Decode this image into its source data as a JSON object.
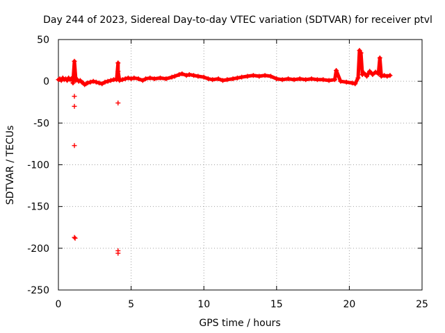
{
  "chart_data": {
    "type": "scatter",
    "title": "Day 244 of 2023, Sidereal Day-to-day VTEC variation (SDTVAR) for receiver ptvl",
    "xlabel": "GPS time / hours",
    "ylabel": "SDTVAR / TECUs",
    "xlim": [
      0,
      25
    ],
    "ylim": [
      -250,
      50
    ],
    "xticks": [
      0,
      5,
      10,
      15,
      20,
      25
    ],
    "yticks": [
      50,
      0,
      -50,
      -100,
      -150,
      -200,
      -250
    ],
    "grid": true,
    "marker": "+",
    "color": "#ff0000",
    "series": [
      {
        "name": "SDTVAR",
        "points": [
          [
            0.0,
            2
          ],
          [
            0.1,
            3
          ],
          [
            0.2,
            1
          ],
          [
            0.3,
            4
          ],
          [
            0.4,
            2
          ],
          [
            0.5,
            3
          ],
          [
            0.6,
            1
          ],
          [
            0.7,
            4
          ],
          [
            0.8,
            2
          ],
          [
            0.9,
            3
          ],
          [
            1.0,
            5
          ],
          [
            1.0,
            -2
          ],
          [
            1.1,
            24
          ],
          [
            1.1,
            -18
          ],
          [
            1.1,
            -30
          ],
          [
            1.1,
            -77
          ],
          [
            1.1,
            -187
          ],
          [
            1.15,
            -188
          ],
          [
            1.2,
            1
          ],
          [
            1.3,
            2
          ],
          [
            1.4,
            0
          ],
          [
            1.5,
            1
          ],
          [
            1.6,
            -1
          ],
          [
            1.7,
            -2
          ],
          [
            1.8,
            -4
          ],
          [
            1.9,
            -3
          ],
          [
            2.0,
            -2
          ],
          [
            2.2,
            -1
          ],
          [
            2.4,
            0
          ],
          [
            2.6,
            -1
          ],
          [
            2.8,
            -2
          ],
          [
            3.0,
            -3
          ],
          [
            3.2,
            -1
          ],
          [
            3.4,
            0
          ],
          [
            3.6,
            1
          ],
          [
            3.8,
            2
          ],
          [
            4.0,
            2
          ],
          [
            4.1,
            22
          ],
          [
            4.1,
            12
          ],
          [
            4.1,
            -26
          ],
          [
            4.1,
            -203
          ],
          [
            4.1,
            -206
          ],
          [
            4.2,
            1
          ],
          [
            4.4,
            2
          ],
          [
            4.6,
            3
          ],
          [
            4.8,
            4
          ],
          [
            5.0,
            3
          ],
          [
            5.2,
            4
          ],
          [
            5.5,
            3
          ],
          [
            5.8,
            1
          ],
          [
            6.0,
            3
          ],
          [
            6.3,
            4
          ],
          [
            6.6,
            3
          ],
          [
            7.0,
            4
          ],
          [
            7.4,
            3
          ],
          [
            7.8,
            5
          ],
          [
            8.0,
            6
          ],
          [
            8.3,
            8
          ],
          [
            8.5,
            9
          ],
          [
            8.8,
            7
          ],
          [
            9.0,
            8
          ],
          [
            9.3,
            7
          ],
          [
            9.6,
            6
          ],
          [
            10.0,
            5
          ],
          [
            10.3,
            3
          ],
          [
            10.6,
            2
          ],
          [
            11.0,
            3
          ],
          [
            11.3,
            1
          ],
          [
            11.6,
            2
          ],
          [
            12.0,
            3
          ],
          [
            12.3,
            4
          ],
          [
            12.6,
            5
          ],
          [
            13.0,
            6
          ],
          [
            13.4,
            7
          ],
          [
            13.8,
            6
          ],
          [
            14.2,
            7
          ],
          [
            14.6,
            6
          ],
          [
            15.0,
            3
          ],
          [
            15.4,
            2
          ],
          [
            15.8,
            3
          ],
          [
            16.2,
            2
          ],
          [
            16.6,
            3
          ],
          [
            17.0,
            2
          ],
          [
            17.4,
            3
          ],
          [
            17.8,
            2
          ],
          [
            18.2,
            2
          ],
          [
            18.6,
            1
          ],
          [
            19.0,
            2
          ],
          [
            19.1,
            13
          ],
          [
            19.4,
            0
          ],
          [
            19.8,
            -1
          ],
          [
            20.2,
            -2
          ],
          [
            20.4,
            -3
          ],
          [
            20.6,
            4
          ],
          [
            20.7,
            37
          ],
          [
            20.8,
            34
          ],
          [
            20.9,
            8
          ],
          [
            21.0,
            10
          ],
          [
            21.2,
            6
          ],
          [
            21.4,
            12
          ],
          [
            21.6,
            8
          ],
          [
            21.8,
            11
          ],
          [
            22.0,
            9
          ],
          [
            22.1,
            28
          ],
          [
            22.2,
            6
          ],
          [
            22.4,
            7
          ],
          [
            22.6,
            6
          ],
          [
            22.8,
            7
          ]
        ]
      }
    ]
  }
}
